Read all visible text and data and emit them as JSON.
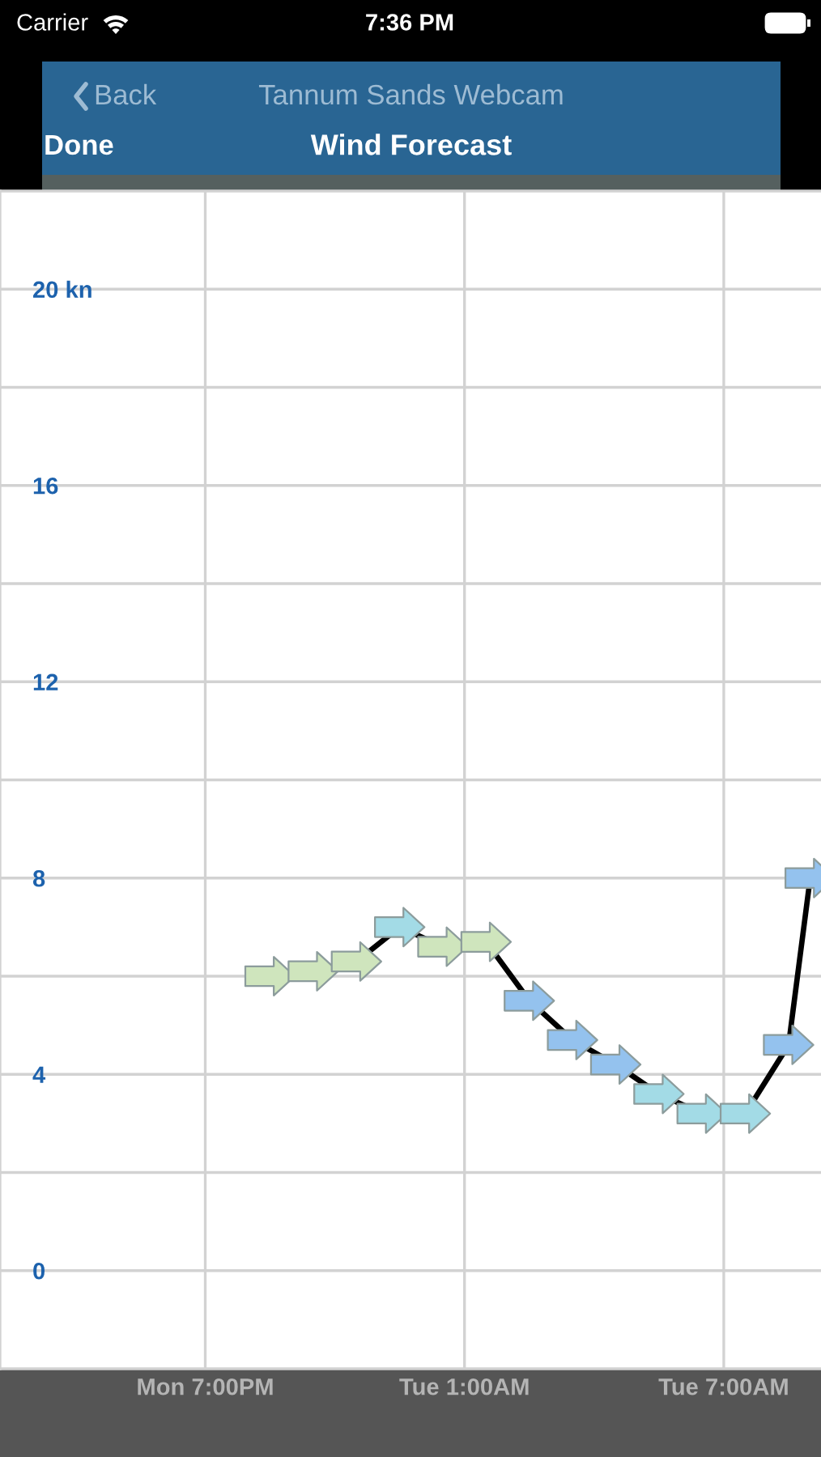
{
  "chart_data": {
    "type": "line",
    "title": "Wind Forecast",
    "annotations": [
      "Carrier",
      "7:36 PM",
      "Done",
      "Back",
      "Tannum Sands Webcam"
    ],
    "categories": [
      null,
      null,
      null,
      null,
      null,
      null,
      null,
      null,
      null,
      "Mon 7:00PM",
      null,
      null,
      null,
      null,
      null,
      null,
      null,
      null,
      null,
      null,
      null,
      "Tue 1:00AM",
      null,
      null,
      null,
      null,
      null,
      null,
      null,
      null,
      null,
      null,
      null,
      "Tue 7:00AM",
      null,
      null,
      null,
      null
    ],
    "series": [
      {
        "color": "#000000",
        "values": [
          null,
          null,
          null,
          null,
          null,
          null,
          null,
          null,
          null,
          null,
          null,
          null,
          6.0,
          null,
          6.1,
          null,
          6.3,
          null,
          7.0,
          null,
          6.6,
          null,
          6.7,
          null,
          5.5,
          null,
          4.7,
          null,
          4.2,
          null,
          3.6,
          null,
          3.2,
          null,
          3.2,
          null,
          4.6,
          8.0
        ],
        "colors": [
          null,
          null,
          null,
          null,
          null,
          null,
          null,
          null,
          null,
          null,
          null,
          null,
          "#cfe5bd",
          null,
          "#cfe5bd",
          null,
          "#cfe5bd",
          null,
          "#a3dbe6",
          null,
          "#cfe5bd",
          null,
          "#cfe5bd",
          null,
          "#94c2ee",
          null,
          "#94c2ee",
          null,
          "#94c2ee",
          null,
          "#a3dbe6",
          null,
          "#a3dbe6",
          null,
          "#a3dbe6",
          null,
          "#94c2ee",
          "#94c2ee"
        ]
      }
    ],
    "marker": "triangle",
    "line_style": "solid",
    "ylim": [
      -2,
      22
    ],
    "yticks": [
      0,
      {
        "value": 2,
        "label": null
      },
      4,
      {
        "value": 6,
        "label": null
      },
      8,
      {
        "value": 10,
        "label": null
      },
      12,
      {
        "value": 14,
        "label": null
      },
      16,
      {
        "value": 18,
        "label": null
      },
      {
        "value": 20,
        "label": "20 kn"
      }
    ],
    "grid": true
  }
}
